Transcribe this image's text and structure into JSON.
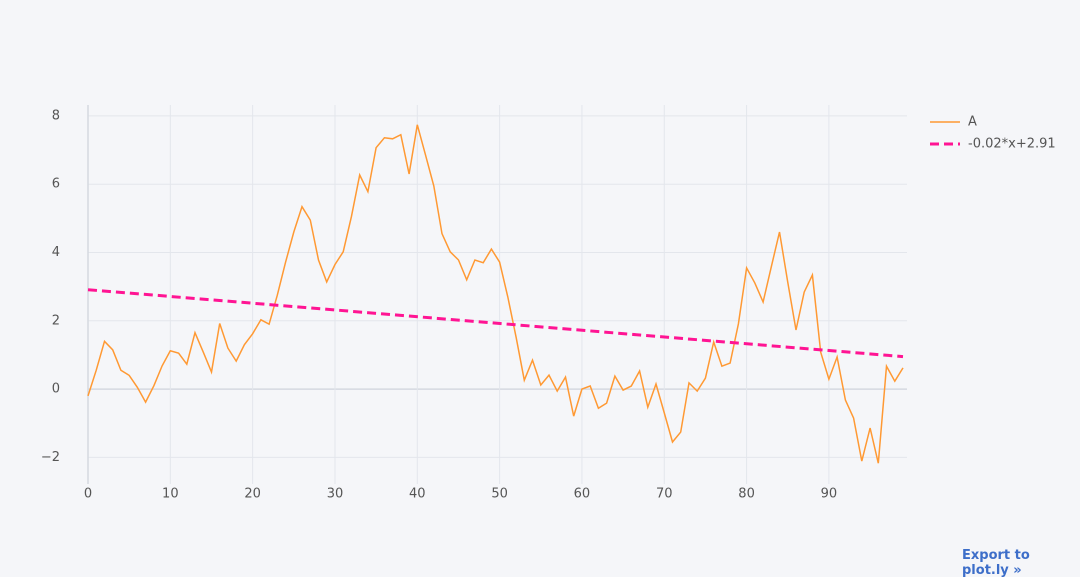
{
  "chart_data": {
    "type": "line",
    "xlim": [
      0,
      99
    ],
    "ylim": [
      -2.78,
      8.32
    ],
    "xticks": [
      0,
      10,
      20,
      30,
      40,
      50,
      60,
      70,
      80,
      90
    ],
    "yticks": [
      {
        "value": -2,
        "label": "−2"
      },
      0,
      2,
      4,
      6,
      8
    ],
    "grid": true,
    "legend": "upper right",
    "series": [
      {
        "name": "A",
        "color": "#ff9933",
        "dash": false,
        "x": [
          0,
          1,
          2,
          3,
          4,
          5,
          6,
          7,
          8,
          9,
          10,
          11,
          12,
          13,
          14,
          15,
          16,
          17,
          18,
          19,
          20,
          21,
          22,
          23,
          24,
          25,
          26,
          27,
          28,
          29,
          30,
          31,
          32,
          33,
          34,
          35,
          36,
          37,
          38,
          39,
          40,
          41,
          42,
          43,
          44,
          45,
          46,
          47,
          48,
          49,
          50,
          51,
          52,
          53,
          54,
          55,
          56,
          57,
          58,
          59,
          60,
          61,
          62,
          63,
          64,
          65,
          66,
          67,
          68,
          69,
          70,
          71,
          72,
          73,
          74,
          75,
          76,
          77,
          78,
          79,
          80,
          81,
          82,
          83,
          84,
          85,
          86,
          87,
          88,
          89,
          90,
          91,
          92,
          93,
          94,
          95,
          96,
          97,
          98,
          99
        ],
        "values": [
          -0.2,
          0.55,
          1.4,
          1.15,
          0.55,
          0.4,
          0.05,
          -0.38,
          0.1,
          0.68,
          1.12,
          1.05,
          0.73,
          1.65,
          1.08,
          0.5,
          1.92,
          1.2,
          0.82,
          1.3,
          1.62,
          2.03,
          1.9,
          2.75,
          3.72,
          4.6,
          5.34,
          4.95,
          3.78,
          3.14,
          3.65,
          4.02,
          5.05,
          6.27,
          5.78,
          7.07,
          7.36,
          7.33,
          7.45,
          6.3,
          7.74,
          6.86,
          5.95,
          4.55,
          4.02,
          3.78,
          3.2,
          3.78,
          3.7,
          4.1,
          3.72,
          2.7,
          1.52,
          0.26,
          0.85,
          0.12,
          0.41,
          -0.06,
          0.35,
          -0.79,
          0,
          0.09,
          -0.56,
          -0.41,
          0.38,
          -0.03,
          0.09,
          0.53,
          -0.53,
          0.15,
          -0.7,
          -1.55,
          -1.26,
          0.18,
          -0.06,
          0.32,
          1.38,
          0.67,
          0.76,
          1.91,
          3.55,
          3.11,
          2.55,
          3.58,
          4.6,
          3.14,
          1.73,
          2.84,
          3.34,
          1.08,
          0.29,
          0.94,
          -0.32,
          -0.85,
          -2.11,
          -1.14,
          -2.17,
          0.67,
          0.23,
          0.62
        ]
      },
      {
        "name": "-0.02*x+2.91",
        "color": "#ff1493",
        "dash": true,
        "x": [
          0,
          99
        ],
        "values": [
          2.91,
          0.95
        ]
      }
    ]
  },
  "link": {
    "text": "Export to plot.ly »"
  }
}
